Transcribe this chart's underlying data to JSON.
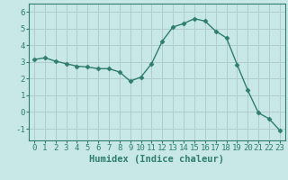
{
  "x": [
    0,
    1,
    2,
    3,
    4,
    5,
    6,
    7,
    8,
    9,
    10,
    11,
    12,
    13,
    14,
    15,
    16,
    17,
    18,
    19,
    20,
    21,
    22,
    23
  ],
  "y": [
    3.15,
    3.25,
    3.05,
    2.9,
    2.75,
    2.7,
    2.6,
    2.6,
    2.4,
    1.85,
    2.1,
    2.9,
    4.25,
    5.1,
    5.3,
    5.6,
    5.45,
    4.85,
    4.45,
    2.85,
    1.3,
    -0.05,
    -0.4,
    -1.1
  ],
  "line_color": "#2e7d6e",
  "marker": "D",
  "marker_size": 2.5,
  "bg_color": "#c8e8e8",
  "grid_color": "#b0cccc",
  "axis_color": "#2e7d6e",
  "xlabel": "Humidex (Indice chaleur)",
  "xlim": [
    -0.5,
    23.5
  ],
  "ylim": [
    -1.7,
    6.5
  ],
  "yticks": [
    -1,
    0,
    1,
    2,
    3,
    4,
    5,
    6
  ],
  "xticks": [
    0,
    1,
    2,
    3,
    4,
    5,
    6,
    7,
    8,
    9,
    10,
    11,
    12,
    13,
    14,
    15,
    16,
    17,
    18,
    19,
    20,
    21,
    22,
    23
  ],
  "tick_fontsize": 6.5,
  "xlabel_fontsize": 7.5
}
